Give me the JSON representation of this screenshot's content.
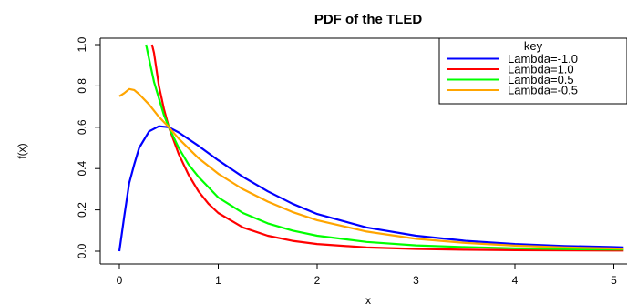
{
  "chart_data": {
    "type": "line",
    "title": "PDF of the TLED",
    "xlabel": "x",
    "ylabel": "f(x)",
    "xlim": [
      0,
      5
    ],
    "ylim": [
      0,
      1.0
    ],
    "x_ticks": [
      "0",
      "1",
      "2",
      "3",
      "4",
      "5"
    ],
    "y_ticks": [
      "0.0",
      "0.2",
      "0.4",
      "0.6",
      "0.8",
      "1.0"
    ],
    "grid": false,
    "legend": {
      "title": "key",
      "position": "top-right"
    },
    "series": [
      {
        "name": "Lambda=-1.0",
        "color": "#0000ff",
        "points": [
          [
            0,
            0
          ],
          [
            0.05,
            0.17
          ],
          [
            0.1,
            0.33
          ],
          [
            0.15,
            0.42
          ],
          [
            0.2,
            0.5
          ],
          [
            0.3,
            0.58
          ],
          [
            0.4,
            0.605
          ],
          [
            0.5,
            0.6
          ],
          [
            0.6,
            0.575
          ],
          [
            0.8,
            0.51
          ],
          [
            1.0,
            0.44
          ],
          [
            1.25,
            0.36
          ],
          [
            1.5,
            0.29
          ],
          [
            1.75,
            0.23
          ],
          [
            2.0,
            0.18
          ],
          [
            2.5,
            0.115
          ],
          [
            3.0,
            0.075
          ],
          [
            3.5,
            0.05
          ],
          [
            4.0,
            0.035
          ],
          [
            4.5,
            0.025
          ],
          [
            5.0,
            0.02
          ],
          [
            5.1,
            0.018
          ]
        ]
      },
      {
        "name": "Lambda=1.0",
        "color": "#ff0000",
        "points": [
          [
            0.33,
            1.0
          ],
          [
            0.35,
            0.96
          ],
          [
            0.4,
            0.8
          ],
          [
            0.45,
            0.69
          ],
          [
            0.5,
            0.6
          ],
          [
            0.6,
            0.47
          ],
          [
            0.7,
            0.37
          ],
          [
            0.8,
            0.29
          ],
          [
            0.9,
            0.23
          ],
          [
            1.0,
            0.185
          ],
          [
            1.25,
            0.115
          ],
          [
            1.5,
            0.075
          ],
          [
            1.75,
            0.05
          ],
          [
            2.0,
            0.035
          ],
          [
            2.5,
            0.018
          ],
          [
            3.0,
            0.011
          ],
          [
            3.5,
            0.007
          ],
          [
            4.0,
            0.005
          ],
          [
            5.0,
            0.003
          ],
          [
            5.1,
            0.003
          ]
        ]
      },
      {
        "name": "Lambda=0.5",
        "color": "#00ff00",
        "points": [
          [
            0.27,
            1.0
          ],
          [
            0.3,
            0.93
          ],
          [
            0.35,
            0.82
          ],
          [
            0.4,
            0.74
          ],
          [
            0.45,
            0.66
          ],
          [
            0.5,
            0.6
          ],
          [
            0.6,
            0.5
          ],
          [
            0.7,
            0.42
          ],
          [
            0.8,
            0.36
          ],
          [
            0.9,
            0.31
          ],
          [
            1.0,
            0.26
          ],
          [
            1.25,
            0.185
          ],
          [
            1.5,
            0.135
          ],
          [
            1.75,
            0.1
          ],
          [
            2.0,
            0.075
          ],
          [
            2.5,
            0.045
          ],
          [
            3.0,
            0.028
          ],
          [
            3.5,
            0.02
          ],
          [
            4.0,
            0.014
          ],
          [
            4.5,
            0.01
          ],
          [
            5.0,
            0.008
          ],
          [
            5.1,
            0.008
          ]
        ]
      },
      {
        "name": "Lambda=-0.5",
        "color": "#ffa500",
        "points": [
          [
            0,
            0.75
          ],
          [
            0.05,
            0.765
          ],
          [
            0.1,
            0.785
          ],
          [
            0.15,
            0.78
          ],
          [
            0.2,
            0.76
          ],
          [
            0.3,
            0.71
          ],
          [
            0.4,
            0.65
          ],
          [
            0.5,
            0.6
          ],
          [
            0.6,
            0.545
          ],
          [
            0.8,
            0.45
          ],
          [
            1.0,
            0.375
          ],
          [
            1.25,
            0.3
          ],
          [
            1.5,
            0.24
          ],
          [
            1.75,
            0.19
          ],
          [
            2.0,
            0.15
          ],
          [
            2.5,
            0.095
          ],
          [
            3.0,
            0.06
          ],
          [
            3.5,
            0.04
          ],
          [
            4.0,
            0.027
          ],
          [
            4.5,
            0.018
          ],
          [
            5.0,
            0.013
          ],
          [
            5.1,
            0.012
          ]
        ]
      }
    ]
  }
}
